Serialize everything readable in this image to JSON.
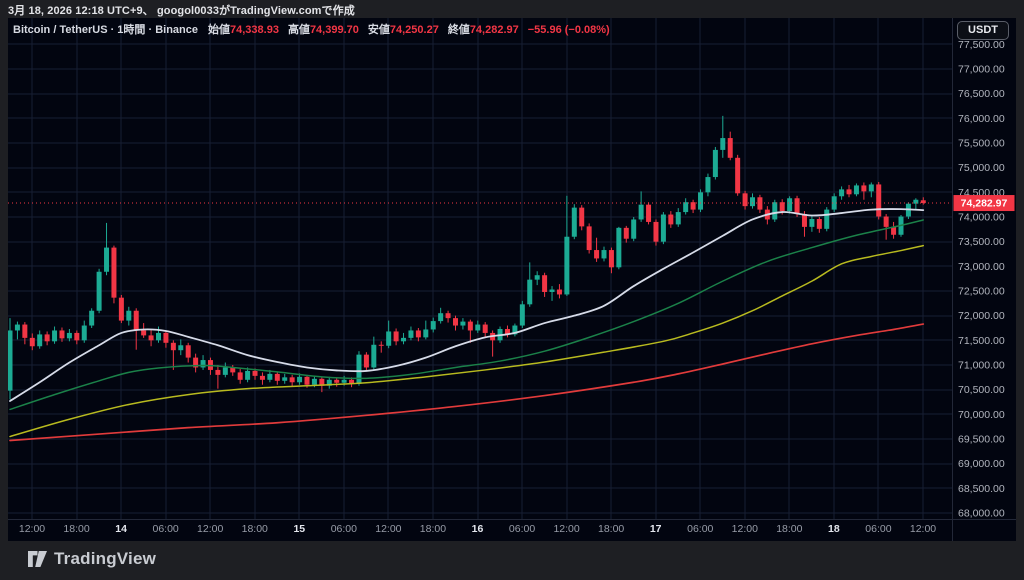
{
  "attribution": {
    "text": "3月 18, 2026 12:18 UTC+9、 googol0033がTradingView.comで作成"
  },
  "header": {
    "symbol_title": "Bitcoin / TetherUS · 1時間 · Binance",
    "ohlc": [
      {
        "label": "始値",
        "value": "74,338.93"
      },
      {
        "label": "高値",
        "value": "74,399.70"
      },
      {
        "label": "安値",
        "value": "74,250.27"
      },
      {
        "label": "終値",
        "value": "74,282.97"
      }
    ],
    "change": "−55.96 (−0.08%)",
    "currency_button": "USDT"
  },
  "footer": {
    "brand": "TradingView"
  },
  "colors": {
    "panel_bg": "#020510",
    "frame_bg": "#1e1f23",
    "grid": "#171e33",
    "axis_text": "#b2b5be",
    "axis_day_text": "#e4e7ee",
    "axis_time_text": "#989da8",
    "separator": "#232838",
    "up": "#1cab94",
    "down": "#f23645",
    "last_price_bg": "#f23645",
    "last_price_text": "#ffffff"
  },
  "chart_data": {
    "type": "candlestick",
    "title": "Bitcoin / TetherUS · 1時間 · Binance",
    "symbol": "Bitcoin / TetherUS",
    "interval": "1時間",
    "exchange": "Binance",
    "price_axis": {
      "min": 68000,
      "max": 77500,
      "step": 500
    },
    "last_price": 74282.97,
    "current_candle": {
      "open": 74338.93,
      "high": 74399.7,
      "low": 74250.27,
      "close": 74282.97,
      "change": -55.96,
      "change_pct": -0.08
    },
    "time_labels": [
      {
        "label": "12:00",
        "day": false
      },
      {
        "label": "18:00",
        "day": false
      },
      {
        "label": "14",
        "day": true
      },
      {
        "label": "06:00",
        "day": false
      },
      {
        "label": "12:00",
        "day": false
      },
      {
        "label": "18:00",
        "day": false
      },
      {
        "label": "15",
        "day": true
      },
      {
        "label": "06:00",
        "day": false
      },
      {
        "label": "12:00",
        "day": false
      },
      {
        "label": "18:00",
        "day": false
      },
      {
        "label": "16",
        "day": true
      },
      {
        "label": "06:00",
        "day": false
      },
      {
        "label": "12:00",
        "day": false
      },
      {
        "label": "18:00",
        "day": false
      },
      {
        "label": "17",
        "day": true
      },
      {
        "label": "06:00",
        "day": false
      },
      {
        "label": "12:00",
        "day": false
      },
      {
        "label": "18:00",
        "day": false
      },
      {
        "label": "18",
        "day": true
      },
      {
        "label": "06:00",
        "day": false
      },
      {
        "label": "12:00",
        "day": false
      }
    ],
    "candles_ohlc": [
      [
        70480,
        71950,
        70300,
        71700
      ],
      [
        71700,
        71880,
        71520,
        71820
      ],
      [
        71820,
        71870,
        71420,
        71550
      ],
      [
        71550,
        71640,
        71300,
        71380
      ],
      [
        71380,
        71700,
        71330,
        71620
      ],
      [
        71620,
        71680,
        71400,
        71480
      ],
      [
        71480,
        71780,
        71430,
        71700
      ],
      [
        71700,
        71760,
        71470,
        71540
      ],
      [
        71540,
        71730,
        71480,
        71650
      ],
      [
        71650,
        71700,
        71420,
        71500
      ],
      [
        71500,
        71900,
        71450,
        71800
      ],
      [
        71800,
        72150,
        71750,
        72100
      ],
      [
        72100,
        72950,
        72050,
        72890
      ],
      [
        72890,
        73880,
        72820,
        73380
      ],
      [
        73380,
        73420,
        72250,
        72365
      ],
      [
        72365,
        72420,
        71850,
        71900
      ],
      [
        71900,
        72180,
        71800,
        72100
      ],
      [
        72100,
        72150,
        71310,
        71700
      ],
      [
        71700,
        71850,
        71550,
        71600
      ],
      [
        71600,
        71720,
        71380,
        71500
      ],
      [
        71500,
        71780,
        71450,
        71650
      ],
      [
        71650,
        71700,
        71350,
        71450
      ],
      [
        71450,
        71500,
        70900,
        71300
      ],
      [
        71300,
        71520,
        71200,
        71400
      ],
      [
        71400,
        71450,
        71050,
        71150
      ],
      [
        71150,
        71230,
        70850,
        70950
      ],
      [
        70950,
        71200,
        70900,
        71100
      ],
      [
        71100,
        71150,
        70800,
        70900
      ],
      [
        70900,
        71000,
        70520,
        70800
      ],
      [
        70800,
        71050,
        70750,
        70950
      ],
      [
        70950,
        71000,
        70780,
        70850
      ],
      [
        70850,
        70920,
        70620,
        70700
      ],
      [
        70700,
        70950,
        70650,
        70880
      ],
      [
        70880,
        70930,
        70700,
        70780
      ],
      [
        70780,
        70850,
        70600,
        70700
      ],
      [
        70700,
        70900,
        70650,
        70820
      ],
      [
        70820,
        70870,
        70600,
        70680
      ],
      [
        70680,
        70820,
        70620,
        70750
      ],
      [
        70750,
        70800,
        70560,
        70650
      ],
      [
        70650,
        70830,
        70600,
        70760
      ],
      [
        70760,
        70800,
        70540,
        70600
      ],
      [
        70600,
        70780,
        70550,
        70720
      ],
      [
        70720,
        70760,
        70450,
        70580
      ],
      [
        70580,
        70760,
        70520,
        70700
      ],
      [
        70700,
        70740,
        70560,
        70640
      ],
      [
        70640,
        70780,
        70580,
        70700
      ],
      [
        70700,
        70750,
        70550,
        70620
      ],
      [
        70620,
        71280,
        70580,
        71210
      ],
      [
        71210,
        71260,
        70880,
        70950
      ],
      [
        70950,
        71575,
        70900,
        71410
      ],
      [
        71410,
        71480,
        71250,
        71390
      ],
      [
        71390,
        71900,
        71340,
        71680
      ],
      [
        71680,
        71740,
        71400,
        71480
      ],
      [
        71480,
        71650,
        71420,
        71550
      ],
      [
        71550,
        71780,
        71500,
        71700
      ],
      [
        71700,
        71750,
        71480,
        71560
      ],
      [
        71560,
        71900,
        71520,
        71720
      ],
      [
        71720,
        71960,
        71660,
        71890
      ],
      [
        71890,
        72160,
        71840,
        72050
      ],
      [
        72050,
        72100,
        71860,
        71950
      ],
      [
        71950,
        72000,
        71700,
        71800
      ],
      [
        71800,
        71950,
        71720,
        71880
      ],
      [
        71880,
        71920,
        71450,
        71700
      ],
      [
        71700,
        71900,
        71650,
        71820
      ],
      [
        71820,
        71870,
        71560,
        71650
      ],
      [
        71650,
        71700,
        71170,
        71500
      ],
      [
        71500,
        71780,
        71450,
        71730
      ],
      [
        71730,
        71800,
        71560,
        71620
      ],
      [
        71620,
        71840,
        71580,
        71800
      ],
      [
        71800,
        72300,
        71750,
        72230
      ],
      [
        72230,
        73080,
        72180,
        72730
      ],
      [
        72730,
        72900,
        72620,
        72820
      ],
      [
        72820,
        72870,
        72380,
        72480
      ],
      [
        72480,
        72600,
        72300,
        72530
      ],
      [
        72530,
        72640,
        72350,
        72430
      ],
      [
        72430,
        74430,
        72400,
        73600
      ],
      [
        73600,
        74260,
        73550,
        74190
      ],
      [
        74190,
        74240,
        73730,
        73810
      ],
      [
        73810,
        73870,
        73260,
        73330
      ],
      [
        73330,
        73580,
        73090,
        73160
      ],
      [
        73160,
        73400,
        73100,
        73330
      ],
      [
        73330,
        73380,
        72860,
        72980
      ],
      [
        72980,
        73800,
        72940,
        73780
      ],
      [
        73780,
        73820,
        73480,
        73560
      ],
      [
        73560,
        74000,
        73510,
        73950
      ],
      [
        73950,
        74520,
        73900,
        74250
      ],
      [
        74250,
        74300,
        73850,
        73900
      ],
      [
        73900,
        73950,
        73420,
        73500
      ],
      [
        73500,
        74100,
        73450,
        74050
      ],
      [
        74050,
        74120,
        73780,
        73850
      ],
      [
        73850,
        74180,
        73800,
        74100
      ],
      [
        74100,
        74380,
        74050,
        74300
      ],
      [
        74300,
        74350,
        74080,
        74150
      ],
      [
        74150,
        74560,
        74100,
        74500
      ],
      [
        74500,
        74880,
        74420,
        74810
      ],
      [
        74810,
        75420,
        74760,
        75360
      ],
      [
        75360,
        76050,
        75200,
        75600
      ],
      [
        75600,
        75730,
        75150,
        75200
      ],
      [
        75200,
        75260,
        74430,
        74480
      ],
      [
        74480,
        74530,
        74150,
        74220
      ],
      [
        74220,
        74480,
        74170,
        74400
      ],
      [
        74400,
        74450,
        74080,
        74150
      ],
      [
        74150,
        74220,
        73850,
        73950
      ],
      [
        73950,
        74350,
        73900,
        74300
      ],
      [
        74300,
        74360,
        74050,
        74120
      ],
      [
        74120,
        74420,
        74070,
        74380
      ],
      [
        74380,
        74430,
        74000,
        74060
      ],
      [
        74060,
        74120,
        73600,
        73800
      ],
      [
        73800,
        74020,
        73700,
        73960
      ],
      [
        73960,
        74000,
        73680,
        73760
      ],
      [
        73760,
        74200,
        73710,
        74150
      ],
      [
        74150,
        74480,
        74100,
        74420
      ],
      [
        74420,
        74620,
        74350,
        74560
      ],
      [
        74560,
        74650,
        74400,
        74460
      ],
      [
        74460,
        74680,
        74420,
        74640
      ],
      [
        74640,
        74700,
        74350,
        74520
      ],
      [
        74520,
        74700,
        74400,
        74660
      ],
      [
        74660,
        74710,
        73950,
        74010
      ],
      [
        74010,
        74060,
        73540,
        73800
      ],
      [
        73800,
        73900,
        73560,
        73640
      ],
      [
        73640,
        74040,
        73600,
        74010
      ],
      [
        74010,
        74300,
        73960,
        74270
      ],
      [
        74270,
        74380,
        74150,
        74350
      ],
      [
        74338.93,
        74399.7,
        74250.27,
        74282.97
      ]
    ],
    "moving_averages": [
      {
        "name": "ma-long-red",
        "color": "#e13b3b",
        "width": 1.7,
        "points": [
          [
            0,
            69470
          ],
          [
            12,
            69600
          ],
          [
            24,
            69730
          ],
          [
            36,
            69830
          ],
          [
            48,
            69980
          ],
          [
            60,
            70160
          ],
          [
            72,
            70380
          ],
          [
            84,
            70650
          ],
          [
            90,
            70820
          ],
          [
            96,
            71020
          ],
          [
            102,
            71230
          ],
          [
            108,
            71430
          ],
          [
            114,
            71600
          ],
          [
            119,
            71720
          ],
          [
            123,
            71830
          ]
        ]
      },
      {
        "name": "ma-slow-yellow",
        "color": "#b8ba1f",
        "width": 1.5,
        "points": [
          [
            0,
            69550
          ],
          [
            8,
            69900
          ],
          [
            16,
            70200
          ],
          [
            24,
            70400
          ],
          [
            32,
            70520
          ],
          [
            40,
            70580
          ],
          [
            48,
            70640
          ],
          [
            56,
            70760
          ],
          [
            64,
            70900
          ],
          [
            72,
            71060
          ],
          [
            80,
            71260
          ],
          [
            88,
            71480
          ],
          [
            92,
            71650
          ],
          [
            96,
            71850
          ],
          [
            100,
            72100
          ],
          [
            104,
            72400
          ],
          [
            108,
            72700
          ],
          [
            112,
            73050
          ],
          [
            116,
            73200
          ],
          [
            120,
            73320
          ],
          [
            123,
            73420
          ]
        ]
      },
      {
        "name": "ma-mid-green",
        "color": "#1b8149",
        "width": 1.5,
        "points": [
          [
            0,
            70100
          ],
          [
            6,
            70400
          ],
          [
            12,
            70680
          ],
          [
            16,
            70850
          ],
          [
            20,
            70940
          ],
          [
            26,
            70990
          ],
          [
            30,
            70950
          ],
          [
            36,
            70860
          ],
          [
            42,
            70760
          ],
          [
            48,
            70730
          ],
          [
            54,
            70810
          ],
          [
            60,
            70950
          ],
          [
            66,
            71080
          ],
          [
            72,
            71280
          ],
          [
            78,
            71560
          ],
          [
            84,
            71880
          ],
          [
            90,
            72250
          ],
          [
            96,
            72700
          ],
          [
            102,
            73100
          ],
          [
            108,
            73380
          ],
          [
            114,
            73630
          ],
          [
            120,
            73830
          ],
          [
            123,
            73940
          ]
        ]
      },
      {
        "name": "ma-fast-white",
        "color": "#d6dbe8",
        "width": 1.8,
        "points": [
          [
            0,
            70270
          ],
          [
            4,
            70650
          ],
          [
            8,
            71050
          ],
          [
            12,
            71400
          ],
          [
            15,
            71650
          ],
          [
            18,
            71720
          ],
          [
            21,
            71690
          ],
          [
            24,
            71570
          ],
          [
            28,
            71400
          ],
          [
            32,
            71200
          ],
          [
            36,
            71060
          ],
          [
            40,
            70950
          ],
          [
            44,
            70890
          ],
          [
            48,
            70880
          ],
          [
            52,
            70980
          ],
          [
            56,
            71150
          ],
          [
            60,
            71380
          ],
          [
            64,
            71560
          ],
          [
            68,
            71650
          ],
          [
            72,
            71850
          ],
          [
            76,
            72000
          ],
          [
            80,
            72200
          ],
          [
            84,
            72600
          ],
          [
            88,
            72950
          ],
          [
            92,
            73280
          ],
          [
            96,
            73620
          ],
          [
            100,
            73950
          ],
          [
            104,
            74100
          ],
          [
            108,
            74030
          ],
          [
            112,
            74080
          ],
          [
            116,
            74150
          ],
          [
            120,
            74160
          ],
          [
            123,
            74140
          ]
        ]
      }
    ]
  }
}
